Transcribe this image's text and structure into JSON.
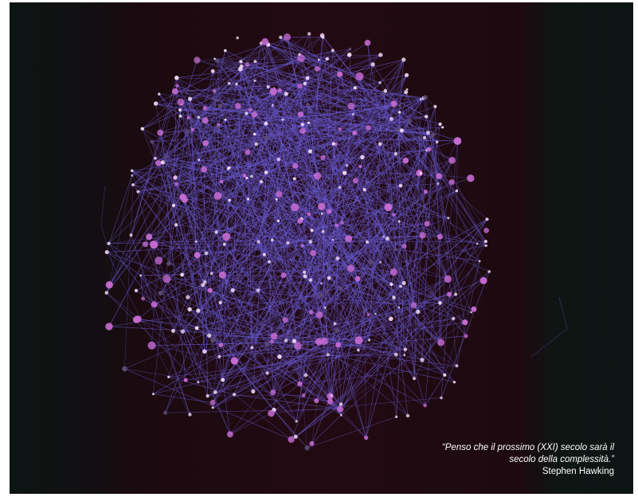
{
  "quote": {
    "line1": "“Penso che il prossimo (XXI) secolo sarà il",
    "line2": "secolo della complessità.”",
    "author": "Stephen Hawking"
  },
  "colors": {
    "background": "#230a12",
    "edge": "#6a5cd6",
    "node_light": "#f0d8f2",
    "node_pink": "#c46ad0",
    "node_dim": "#5a4a70"
  }
}
